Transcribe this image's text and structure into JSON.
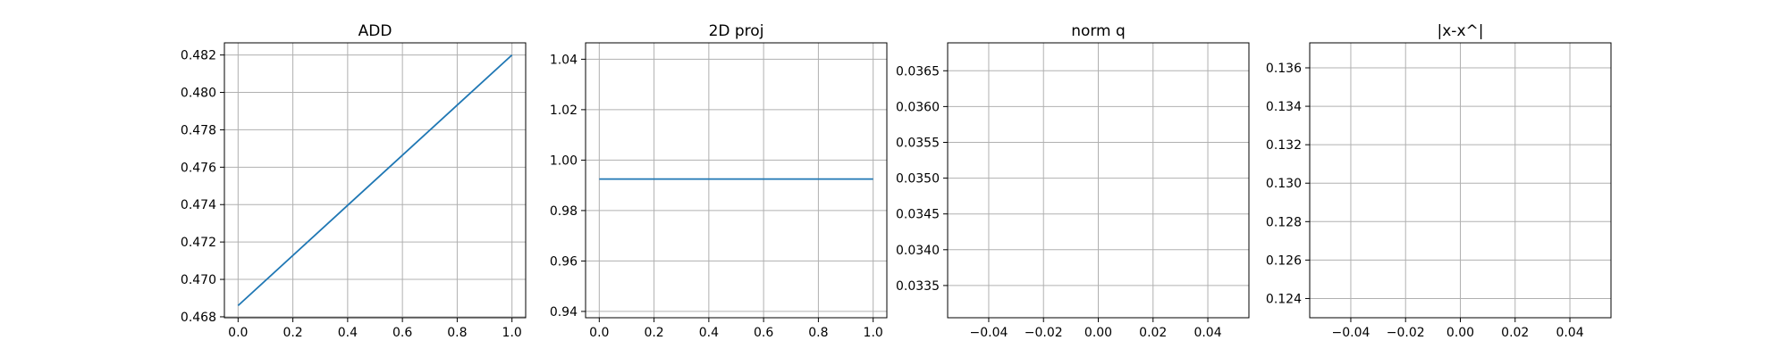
{
  "chart_data": [
    {
      "type": "line",
      "title": "ADD",
      "xlabel": "",
      "ylabel": "",
      "xlim": [
        -0.05,
        1.05
      ],
      "ylim": [
        0.46795,
        0.48265
      ],
      "xticks": [
        "0.0",
        "0.2",
        "0.4",
        "0.6",
        "0.8",
        "1.0"
      ],
      "yticks": [
        "0.468",
        "0.470",
        "0.472",
        "0.474",
        "0.476",
        "0.478",
        "0.480",
        "0.482"
      ],
      "grid": true,
      "series": [
        {
          "x": [
            0.0,
            1.0
          ],
          "y": [
            0.4686,
            0.482
          ],
          "color": "#1f77b4"
        }
      ]
    },
    {
      "type": "line",
      "title": "2D proj",
      "xlabel": "",
      "ylabel": "",
      "xlim": [
        -0.05,
        1.05
      ],
      "ylim": [
        0.9375,
        1.0465
      ],
      "xticks": [
        "0.0",
        "0.2",
        "0.4",
        "0.6",
        "0.8",
        "1.0"
      ],
      "yticks": [
        "0.94",
        "0.96",
        "0.98",
        "1.00",
        "1.02",
        "1.04"
      ],
      "grid": true,
      "series": [
        {
          "x": [
            0.0,
            1.0
          ],
          "y": [
            0.9925,
            0.9925
          ],
          "color": "#1f77b4"
        }
      ]
    },
    {
      "type": "line",
      "title": "norm q",
      "xlabel": "",
      "ylabel": "",
      "xlim": [
        -0.055,
        0.055
      ],
      "ylim": [
        0.03305,
        0.03689
      ],
      "xticks": [
        "−0.04",
        "−0.02",
        "0.00",
        "0.02",
        "0.04"
      ],
      "yticks": [
        "0.0335",
        "0.0340",
        "0.0345",
        "0.0350",
        "0.0355",
        "0.0360",
        "0.0365"
      ],
      "grid": true,
      "series": []
    },
    {
      "type": "line",
      "title": "|x-x^|",
      "xlabel": "",
      "ylabel": "",
      "xlim": [
        -0.055,
        0.055
      ],
      "ylim": [
        0.123,
        0.1373
      ],
      "xticks": [
        "−0.04",
        "−0.02",
        "0.00",
        "0.02",
        "0.04"
      ],
      "yticks": [
        "0.124",
        "0.126",
        "0.128",
        "0.130",
        "0.132",
        "0.134",
        "0.136"
      ],
      "grid": true,
      "series": []
    }
  ]
}
